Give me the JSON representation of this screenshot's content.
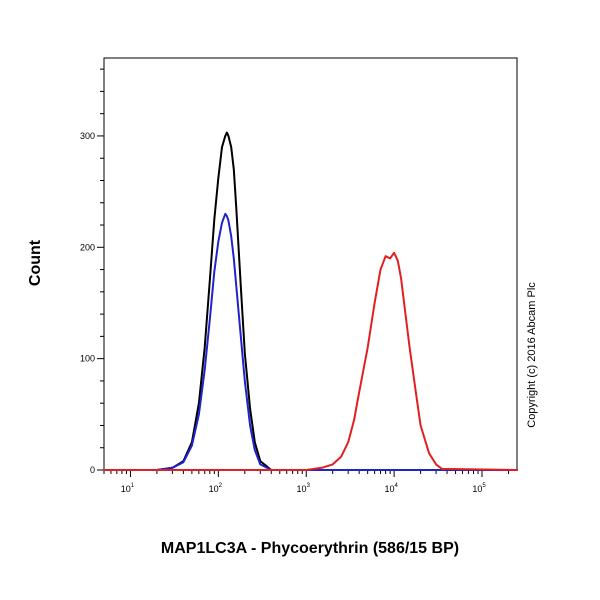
{
  "chart_data": {
    "type": "line",
    "title": "",
    "xlabel": "MAP1LC3A - Phycoerythrin (586/15 BP)",
    "ylabel": "Count",
    "xscale": "log",
    "xlim": [
      5,
      250000
    ],
    "ylim": [
      0,
      370
    ],
    "xticks": [
      {
        "base": "10",
        "exp": "1",
        "value": 10
      },
      {
        "base": "10",
        "exp": "2",
        "value": 100
      },
      {
        "base": "10",
        "exp": "3",
        "value": 1000
      },
      {
        "base": "10",
        "exp": "4",
        "value": 10000
      },
      {
        "base": "10",
        "exp": "5",
        "value": 100000
      }
    ],
    "yticks": [
      0,
      100,
      200,
      300
    ],
    "grid": false,
    "legend": "none",
    "annotation": "Copyright (c) 2016 Abcam Plc",
    "series": [
      {
        "color": "#000000",
        "x": [
          5,
          20,
          30,
          40,
          50,
          60,
          70,
          80,
          90,
          100,
          110,
          120,
          125,
          130,
          140,
          150,
          160,
          180,
          200,
          230,
          260,
          300,
          400,
          1000,
          250000
        ],
        "y": [
          0,
          0,
          2,
          8,
          25,
          60,
          110,
          170,
          225,
          262,
          290,
          300,
          303,
          300,
          290,
          270,
          235,
          165,
          105,
          55,
          25,
          8,
          0,
          0,
          0
        ]
      },
      {
        "color": "#2222cc",
        "x": [
          5,
          20,
          30,
          40,
          50,
          60,
          70,
          80,
          90,
          100,
          110,
          120,
          125,
          130,
          140,
          150,
          160,
          180,
          200,
          230,
          260,
          300,
          400,
          1000,
          250000
        ],
        "y": [
          0,
          0,
          2,
          7,
          22,
          50,
          90,
          135,
          178,
          205,
          222,
          230,
          228,
          224,
          210,
          190,
          165,
          120,
          80,
          40,
          18,
          5,
          0,
          0,
          0
        ]
      },
      {
        "color": "#e02020",
        "x": [
          5,
          1000,
          1500,
          2000,
          2500,
          3000,
          3500,
          4000,
          5000,
          6000,
          7000,
          8000,
          9000,
          10000,
          11000,
          12000,
          13000,
          15000,
          18000,
          20000,
          25000,
          30000,
          35000,
          250000
        ],
        "y": [
          0,
          0,
          2,
          5,
          12,
          25,
          45,
          70,
          110,
          150,
          180,
          192,
          190,
          195,
          188,
          172,
          150,
          110,
          65,
          40,
          15,
          5,
          1,
          0
        ]
      }
    ]
  }
}
